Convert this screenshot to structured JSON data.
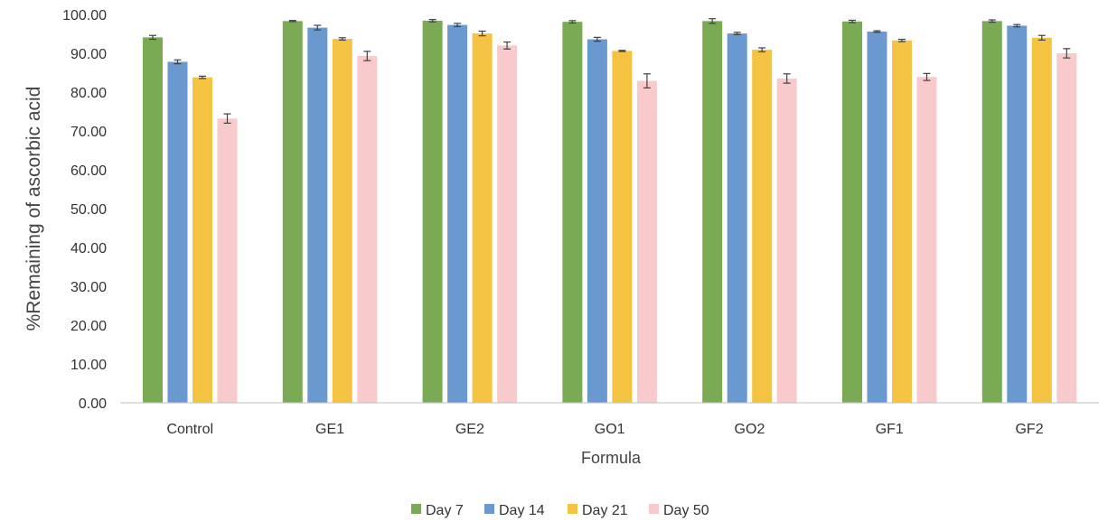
{
  "chart_data": {
    "type": "bar",
    "title": "",
    "xlabel": "Formula",
    "ylabel": "%Remaining of ascorbic acid",
    "ylim": [
      0,
      100
    ],
    "ytick_step": 10,
    "ytick_labels": [
      "0.00",
      "10.00",
      "20.00",
      "30.00",
      "40.00",
      "50.00",
      "60.00",
      "70.00",
      "80.00",
      "90.00",
      "100.00"
    ],
    "categories": [
      "Control",
      "GE1",
      "GE2",
      "GO1",
      "GO2",
      "GF1",
      "GF2"
    ],
    "series": [
      {
        "name": "Day 7",
        "color": "#7aab54",
        "values": [
          94.1,
          98.3,
          98.4,
          98.1,
          98.3,
          98.2,
          98.3
        ],
        "errors": [
          0.5,
          0.15,
          0.3,
          0.3,
          0.6,
          0.3,
          0.3
        ]
      },
      {
        "name": "Day 14",
        "color": "#6a99d0",
        "values": [
          87.8,
          96.6,
          97.3,
          93.6,
          95.1,
          95.6,
          97.1
        ],
        "errors": [
          0.5,
          0.6,
          0.4,
          0.5,
          0.3,
          0.2,
          0.3
        ]
      },
      {
        "name": "Day 21",
        "color": "#f5c342",
        "values": [
          83.8,
          93.7,
          95.1,
          90.6,
          90.9,
          93.3,
          94.0
        ],
        "errors": [
          0.3,
          0.3,
          0.6,
          0.15,
          0.5,
          0.3,
          0.6
        ]
      },
      {
        "name": "Day 50",
        "color": "#f8cacb",
        "values": [
          73.2,
          89.3,
          92.0,
          82.9,
          83.5,
          83.9,
          90.0
        ],
        "errors": [
          1.2,
          1.2,
          0.9,
          1.8,
          1.2,
          0.9,
          1.2
        ]
      }
    ],
    "grid": false,
    "legend_position": "bottom-center",
    "error_bars": true
  }
}
